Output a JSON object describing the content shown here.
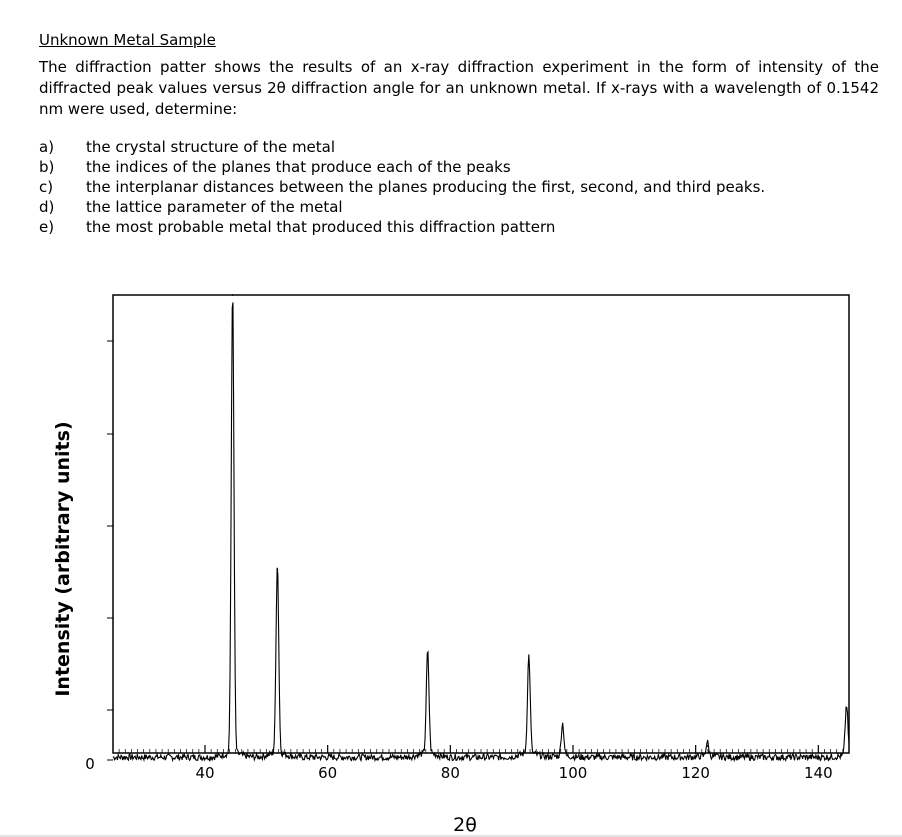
{
  "problem": {
    "heading": "Unknown Metal Sample",
    "intro": "The diffraction patter shows the results of an x-ray diffraction experiment in the form of intensity of the diffracted peak values versus 2θ diffraction angle for an unknown metal. If x-rays with a wavelength of 0.1542 nm were used, determine:",
    "questions": [
      {
        "label": "a)",
        "text": "the crystal structure of the metal"
      },
      {
        "label": "b)",
        "text": "the indices of the planes that produce each of the peaks"
      },
      {
        "label": "c)",
        "text": "the interplanar distances between the planes producing the first, second, and third peaks."
      },
      {
        "label": "d)",
        "text": "the lattice parameter of the metal"
      },
      {
        "label": "e)",
        "text": "the most probable metal that produced this diffraction pattern"
      }
    ]
  },
  "chart_data": {
    "type": "line",
    "title": "",
    "xlabel": "2θ",
    "ylabel": "Intensity (arbitrary units)",
    "xlim": [
      25,
      145
    ],
    "ylim": [
      0,
      100
    ],
    "xticks": [
      40,
      60,
      80,
      100,
      120,
      140
    ],
    "yticks": [
      0
    ],
    "grid": false,
    "series": [
      {
        "peaks": [
          {
            "two_theta": 44.5,
            "intensity": 100
          },
          {
            "two_theta": 51.8,
            "intensity": 41
          },
          {
            "two_theta": 76.3,
            "intensity": 22
          },
          {
            "two_theta": 92.8,
            "intensity": 21
          },
          {
            "two_theta": 98.3,
            "intensity": 7
          },
          {
            "two_theta": 121.9,
            "intensity": 3
          },
          {
            "two_theta": 144.6,
            "intensity": 11
          }
        ]
      }
    ]
  }
}
